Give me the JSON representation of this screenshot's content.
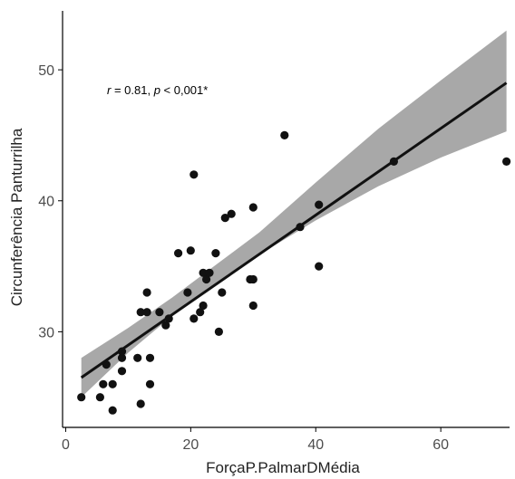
{
  "chart_data": {
    "type": "scatter",
    "title": "",
    "xlabel": "ForçaP.PalmarDMédia",
    "ylabel": "Circunferência Panturrilha",
    "xlim": [
      -0.5,
      71
    ],
    "ylim": [
      22.7,
      54.5
    ],
    "x_ticks": [
      0,
      20,
      40,
      60
    ],
    "y_ticks": [
      30,
      40,
      50
    ],
    "grid": false,
    "annotation": {
      "r_label": "r",
      "r_text": " = 0.81, ",
      "p_label": "p",
      "p_text": " < 0,001*"
    },
    "colors": {
      "points": "#111111",
      "line": "#111111",
      "band": "#999999"
    },
    "points": [
      {
        "x": 2.5,
        "y": 25.0
      },
      {
        "x": 5.5,
        "y": 25.0
      },
      {
        "x": 6.0,
        "y": 26.0
      },
      {
        "x": 6.5,
        "y": 27.5
      },
      {
        "x": 7.5,
        "y": 26.0
      },
      {
        "x": 7.5,
        "y": 24.0
      },
      {
        "x": 9.0,
        "y": 27.0
      },
      {
        "x": 9.0,
        "y": 28.0
      },
      {
        "x": 9.0,
        "y": 28.5
      },
      {
        "x": 11.5,
        "y": 28.0
      },
      {
        "x": 12.0,
        "y": 24.5
      },
      {
        "x": 12.0,
        "y": 31.5
      },
      {
        "x": 13.0,
        "y": 31.5
      },
      {
        "x": 13.0,
        "y": 33.0
      },
      {
        "x": 13.5,
        "y": 28.0
      },
      {
        "x": 13.5,
        "y": 26.0
      },
      {
        "x": 15.0,
        "y": 31.5
      },
      {
        "x": 16.0,
        "y": 30.5
      },
      {
        "x": 16.5,
        "y": 31.0
      },
      {
        "x": 18.0,
        "y": 36.0
      },
      {
        "x": 19.5,
        "y": 33.0
      },
      {
        "x": 20.0,
        "y": 36.2
      },
      {
        "x": 20.5,
        "y": 31.0
      },
      {
        "x": 20.5,
        "y": 42.0
      },
      {
        "x": 21.5,
        "y": 31.5
      },
      {
        "x": 22.0,
        "y": 32.0
      },
      {
        "x": 22.0,
        "y": 34.5
      },
      {
        "x": 22.5,
        "y": 34.0
      },
      {
        "x": 23.0,
        "y": 34.5
      },
      {
        "x": 24.0,
        "y": 36.0
      },
      {
        "x": 24.5,
        "y": 30.0
      },
      {
        "x": 25.0,
        "y": 33.0
      },
      {
        "x": 25.5,
        "y": 38.7
      },
      {
        "x": 26.5,
        "y": 39.0
      },
      {
        "x": 29.5,
        "y": 34.0
      },
      {
        "x": 30.0,
        "y": 34.0
      },
      {
        "x": 30.0,
        "y": 39.5
      },
      {
        "x": 30.0,
        "y": 32.0
      },
      {
        "x": 35.0,
        "y": 45.0
      },
      {
        "x": 37.5,
        "y": 38.0
      },
      {
        "x": 40.5,
        "y": 35.0
      },
      {
        "x": 40.5,
        "y": 39.7
      },
      {
        "x": 52.5,
        "y": 43.0
      },
      {
        "x": 70.5,
        "y": 43.0
      }
    ],
    "fit": {
      "x": [
        2.5,
        70.5
      ],
      "y": [
        26.5,
        49.0
      ],
      "band": [
        {
          "x": 2.5,
          "lower": 25.0,
          "upper": 28.0
        },
        {
          "x": 10.0,
          "lower": 28.4,
          "upper": 30.3
        },
        {
          "x": 17.0,
          "lower": 31.2,
          "upper": 32.6
        },
        {
          "x": 24.0,
          "lower": 33.7,
          "upper": 35.1
        },
        {
          "x": 31.0,
          "lower": 35.9,
          "upper": 37.6
        },
        {
          "x": 40.0,
          "lower": 38.5,
          "upper": 41.4
        },
        {
          "x": 50.0,
          "lower": 41.1,
          "upper": 45.5
        },
        {
          "x": 60.0,
          "lower": 43.3,
          "upper": 49.2
        },
        {
          "x": 70.5,
          "lower": 45.3,
          "upper": 53.0
        }
      ]
    }
  }
}
